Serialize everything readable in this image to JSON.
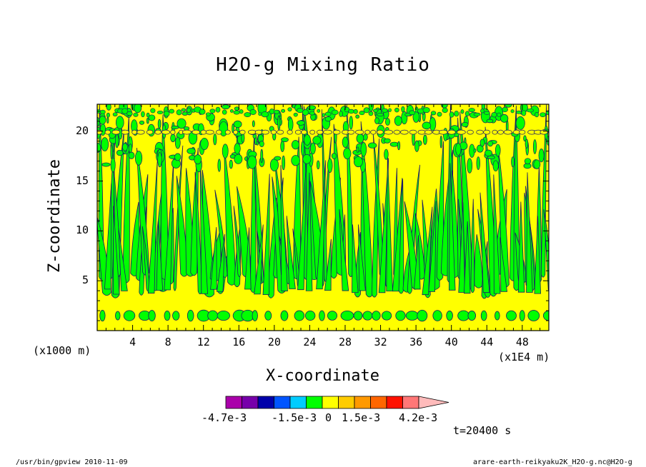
{
  "chart_data": {
    "type": "heatmap",
    "title": "H2O-g Mixing Ratio",
    "xlabel": "X-coordinate",
    "ylabel": "Z-coordinate",
    "x_unit_label": "(x1000 m)",
    "x_multiplier_label": "(x1E4 m)",
    "xlim": [
      0,
      51
    ],
    "ylim": [
      0,
      22.7
    ],
    "x_ticks": [
      4,
      8,
      12,
      16,
      20,
      24,
      28,
      32,
      36,
      40,
      44,
      48
    ],
    "y_ticks": [
      5,
      10,
      15,
      20
    ],
    "time_label": "t=20400 s",
    "colorbar": {
      "colors": [
        "#aa00aa",
        "#7700aa",
        "#0000aa",
        "#0055ff",
        "#00ccff",
        "#00ff00",
        "#ffff00",
        "#ffcc00",
        "#ff9900",
        "#ff6600",
        "#ff1100",
        "#ff7777",
        "#ffbbbb"
      ],
      "labels": [
        "-4.7e-3",
        "-1.5e-3",
        "0",
        "1.5e-3",
        "4.2e-3"
      ],
      "extend": "max"
    },
    "field_levels": [
      "yellow: 0 to 7.5e-4 (background)",
      "green: -7.5e-4 to 0 (plumes)"
    ],
    "low_band_z": 1.5,
    "plume_bases_x": [
      2,
      7,
      13,
      18,
      22,
      25,
      29,
      33,
      37,
      41,
      45,
      49
    ]
  },
  "footer": {
    "left": "/usr/bin/gpview  2010-11-09",
    "right": "arare-earth-reikyaku2K_H2O-g.nc@H2O-g"
  }
}
